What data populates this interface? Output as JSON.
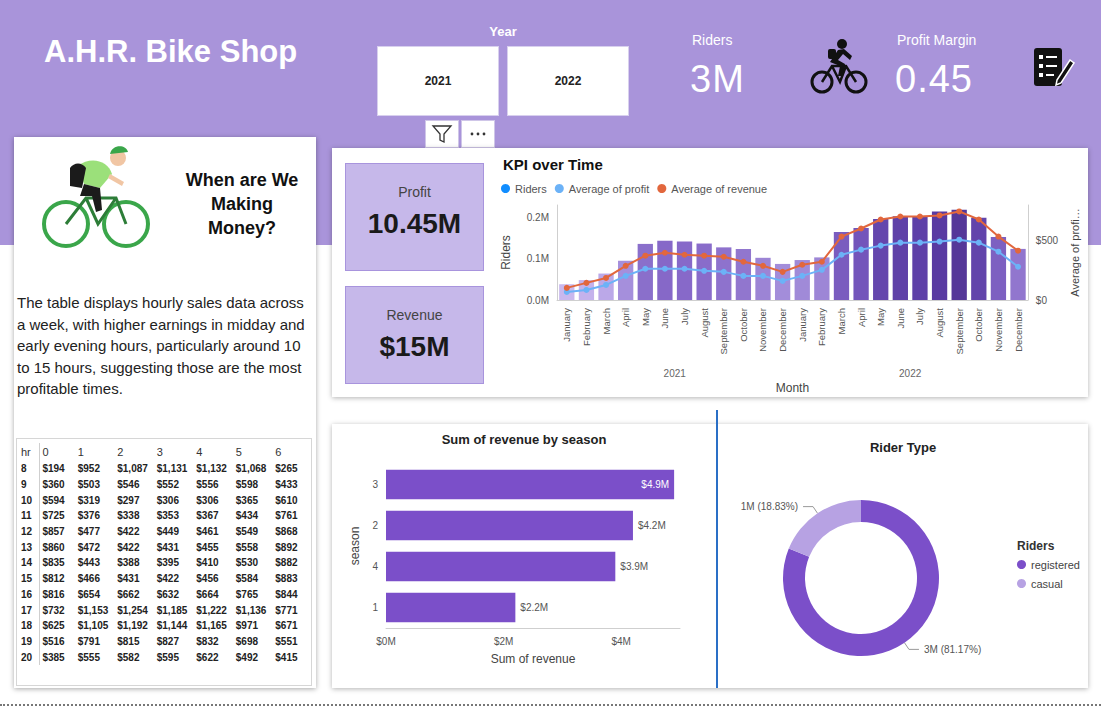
{
  "header": {
    "title": "A.H.R. Bike Shop",
    "slicer": {
      "label": "Year",
      "options": [
        "2021",
        "2022"
      ]
    },
    "kpis": [
      {
        "label": "Riders",
        "value": "3M"
      },
      {
        "label": "Profit Margin",
        "value": "0.45"
      }
    ]
  },
  "cards": [
    {
      "label": "Profit",
      "value": "10.45M"
    },
    {
      "label": "Revenue",
      "value": "$15M"
    }
  ],
  "story": {
    "heading": "When are We Making Money?",
    "text": "The table displays hourly sales data across a week, with higher earnings in midday and early evening hours, particularly around 10 to 15 hours, suggesting those are the most profitable times."
  },
  "table": {
    "header": [
      "hr",
      "0",
      "1",
      "2",
      "3",
      "4",
      "5",
      "6"
    ],
    "rows": [
      [
        "8",
        "$194",
        "$952",
        "$1,087",
        "$1,131",
        "$1,132",
        "$1,068",
        "$265"
      ],
      [
        "9",
        "$360",
        "$503",
        "$546",
        "$552",
        "$556",
        "$598",
        "$433"
      ],
      [
        "10",
        "$594",
        "$319",
        "$297",
        "$306",
        "$306",
        "$365",
        "$610"
      ],
      [
        "11",
        "$725",
        "$376",
        "$338",
        "$353",
        "$367",
        "$434",
        "$761"
      ],
      [
        "12",
        "$857",
        "$477",
        "$422",
        "$449",
        "$461",
        "$549",
        "$868"
      ],
      [
        "13",
        "$860",
        "$472",
        "$422",
        "$431",
        "$455",
        "$558",
        "$892"
      ],
      [
        "14",
        "$835",
        "$443",
        "$388",
        "$395",
        "$410",
        "$530",
        "$882"
      ],
      [
        "15",
        "$812",
        "$466",
        "$431",
        "$422",
        "$456",
        "$584",
        "$883"
      ],
      [
        "16",
        "$816",
        "$654",
        "$662",
        "$632",
        "$664",
        "$765",
        "$844"
      ],
      [
        "17",
        "$732",
        "$1,153",
        "$1,254",
        "$1,185",
        "$1,222",
        "$1,136",
        "$771"
      ],
      [
        "18",
        "$625",
        "$1,105",
        "$1,192",
        "$1,144",
        "$1,165",
        "$971",
        "$671"
      ],
      [
        "19",
        "$516",
        "$791",
        "$815",
        "$827",
        "$832",
        "$698",
        "$551"
      ],
      [
        "20",
        "$385",
        "$555",
        "$582",
        "$595",
        "$622",
        "$492",
        "$415"
      ]
    ]
  },
  "chart_data": [
    {
      "type": "bar",
      "title": "KPI over Time",
      "categories": [
        "January",
        "February",
        "March",
        "April",
        "May",
        "June",
        "July",
        "August",
        "September",
        "October",
        "November",
        "December",
        "January",
        "February",
        "March",
        "April",
        "May",
        "June",
        "July",
        "August",
        "September",
        "October",
        "November",
        "December"
      ],
      "x_groups": [
        "2021",
        "2022"
      ],
      "xlabel": "Month",
      "ylabel": "Riders",
      "y2label": "Average of profi…",
      "ylim": [
        0,
        230000
      ],
      "yticks": [
        {
          "value": 0,
          "label": "0.0M"
        },
        {
          "value": 100000,
          "label": "0.1M"
        },
        {
          "value": 200000,
          "label": "0.2M"
        }
      ],
      "y2lim": [
        0,
        800
      ],
      "y2ticks": [
        {
          "value": 0,
          "label": "$0"
        },
        {
          "value": 500,
          "label": "$500"
        }
      ],
      "legend": "top-left",
      "grid": false,
      "series": [
        {
          "name": "Riders",
          "type": "bar",
          "color": "#118dff",
          "colors": [
            "#c9b8ee",
            "#c4b2ec",
            "#bba8e8",
            "#a58fdc",
            "#8a6fcb",
            "#8668c8",
            "#8769c9",
            "#896cca",
            "#8e72cd",
            "#9176ce",
            "#9c84d5",
            "#a38dda",
            "#a08ad8",
            "#9d86d6",
            "#7a5cbf",
            "#7355bb",
            "#6446ad",
            "#5f41a8",
            "#5e40a8",
            "#583aa2",
            "#553799",
            "#6244ab",
            "#7d60c1",
            "#9176ce"
          ],
          "values": [
            38189,
            48215,
            64045,
            94870,
            135821,
            143512,
            141341,
            136691,
            127418,
            123511,
            102167,
            87323,
            96744,
            103137,
            164875,
            174224,
            195865,
            202830,
            203607,
            214503,
            218573,
            198841,
            152664,
            123713
          ]
        },
        {
          "name": "Average of profit",
          "type": "line",
          "axis": "y2",
          "color": "#6cb2f7",
          "marker": "circle",
          "values": [
            68,
            85,
            127,
            203,
            263,
            263,
            263,
            246,
            237,
            203,
            203,
            161,
            203,
            254,
            381,
            424,
            458,
            483,
            483,
            492,
            508,
            483,
            407,
            280
          ]
        },
        {
          "name": "Average of revenue",
          "type": "line",
          "axis": "y2",
          "color": "#e2673d",
          "marker": "circle",
          "values": [
            102,
            144,
            186,
            288,
            373,
            398,
            381,
            373,
            364,
            322,
            288,
            237,
            297,
            322,
            534,
            602,
            678,
            703,
            703,
            712,
            746,
            678,
            534,
            415
          ]
        }
      ]
    },
    {
      "type": "bar",
      "orientation": "horizontal",
      "title": "Sum of revenue by season",
      "categories": [
        "3",
        "2",
        "4",
        "1"
      ],
      "values": [
        4.9,
        4.2,
        3.9,
        2.2
      ],
      "value_labels": [
        "$4.9M",
        "$4.2M",
        "$3.9M",
        "$2.2M"
      ],
      "data_labels": true,
      "color": "#7b4fc9",
      "xlabel": "Sum of revenue",
      "ylabel": "season",
      "xlim": [
        0,
        5
      ],
      "xticks": [
        {
          "value": 0,
          "label": "$0M"
        },
        {
          "value": 2,
          "label": "$2M"
        },
        {
          "value": 4,
          "label": "$4M"
        }
      ],
      "grid": false
    },
    {
      "type": "donut",
      "title": "Rider Type",
      "categories": [
        "registered",
        "casual"
      ],
      "values": [
        2672662,
        620017
      ],
      "value_labels": [
        "3M (81.17%)",
        "1M (18.83%)"
      ],
      "colors": [
        "#7b4fc9",
        "#b7a2e3"
      ],
      "data_labels": true,
      "legend": "right",
      "legend_title": "Riders"
    }
  ]
}
